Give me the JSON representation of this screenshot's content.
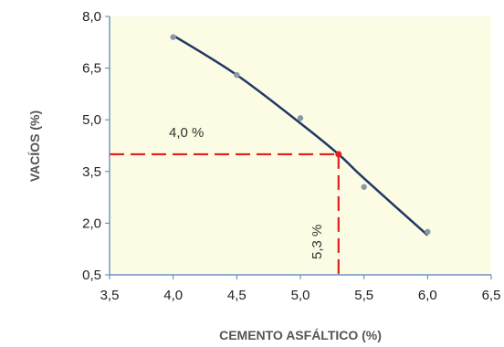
{
  "chart_data": {
    "type": "scatter",
    "xlabel": "CEMENTO ASFÁLTICO (%)",
    "ylabel": "VACÍOS  (%)",
    "xlim": [
      3.5,
      6.5
    ],
    "ylim": [
      0.5,
      8.0
    ],
    "x_ticks": [
      "3,5",
      "4,0",
      "4,5",
      "5,0",
      "5,5",
      "6,0",
      "6,5"
    ],
    "y_ticks": [
      "0,5",
      "2,0",
      "3,5",
      "5,0",
      "6,5",
      "8,0"
    ],
    "points": [
      {
        "x": 4.0,
        "y": 7.4
      },
      {
        "x": 4.5,
        "y": 6.3
      },
      {
        "x": 5.0,
        "y": 5.05
      },
      {
        "x": 5.5,
        "y": 3.05
      },
      {
        "x": 6.0,
        "y": 1.75
      }
    ],
    "trend_curve": [
      {
        "x": 4.0,
        "y": 7.45
      },
      {
        "x": 4.5,
        "y": 6.3
      },
      {
        "x": 5.0,
        "y": 4.9
      },
      {
        "x": 5.3,
        "y": 4.0
      },
      {
        "x": 5.5,
        "y": 3.3
      },
      {
        "x": 6.0,
        "y": 1.65
      }
    ],
    "reference": {
      "x": 5.3,
      "y": 4.0
    },
    "annotations": {
      "y_value_label": "4,0 %",
      "x_value_label": "5,3 %"
    },
    "colors": {
      "plot_background": "#fcfbe3",
      "axis": "#4f81bd",
      "curve": "#1f3864",
      "points": "#8c96a6",
      "reference": "#e02020"
    },
    "grid": false,
    "legend": "none"
  }
}
